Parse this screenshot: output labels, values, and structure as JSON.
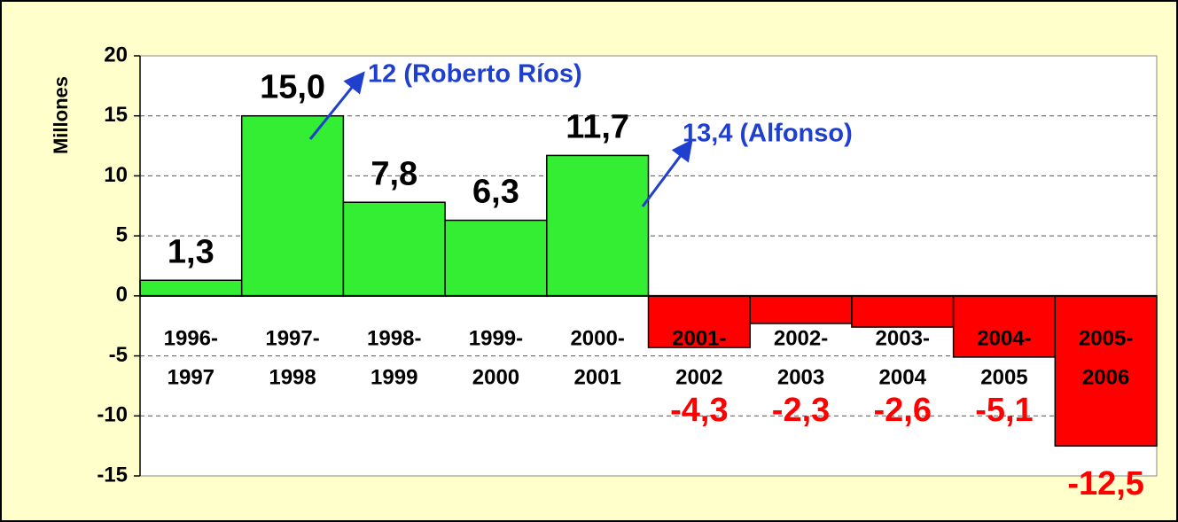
{
  "chart_data": {
    "type": "bar",
    "ylabel": "Millones",
    "categories": [
      [
        "1996-",
        "1997"
      ],
      [
        "1997-",
        "1998"
      ],
      [
        "1998-",
        "1999"
      ],
      [
        "1999-",
        "2000"
      ],
      [
        "2000-",
        "2001"
      ],
      [
        "2001-",
        "2002"
      ],
      [
        "2002-",
        "2003"
      ],
      [
        "2003-",
        "2004"
      ],
      [
        "2004-",
        "2005"
      ],
      [
        "2005-",
        "2006"
      ]
    ],
    "values": [
      1.3,
      15.0,
      7.8,
      6.3,
      11.7,
      -4.3,
      -2.3,
      -2.6,
      -5.1,
      -12.5
    ],
    "value_labels": [
      "1,3",
      "15,0",
      "7,8",
      "6,3",
      "11,7",
      "-4,3",
      "-2,3",
      "-2,6",
      "-5,1",
      "-12,5"
    ],
    "positive_color": "#33ee33",
    "negative_color": "#ff0000",
    "ylim": [
      -15,
      20
    ],
    "yticks": [
      -15,
      -10,
      -5,
      0,
      5,
      10,
      15,
      20
    ],
    "grid": true,
    "annotations": [
      "12 (Roberto Ríos)",
      "13,4 (Alfonso)"
    ]
  }
}
